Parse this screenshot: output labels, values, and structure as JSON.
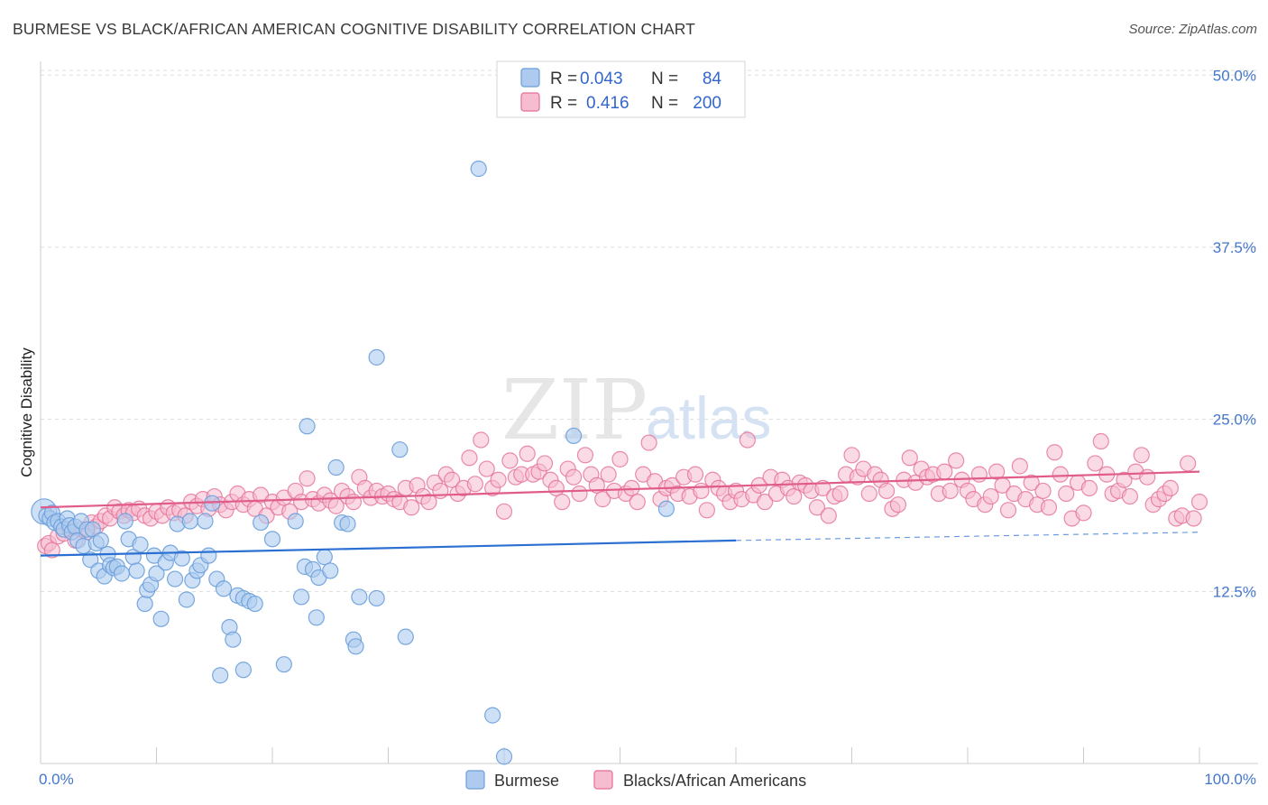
{
  "header": {
    "title": "BURMESE VS BLACK/AFRICAN AMERICAN COGNITIVE DISABILITY CORRELATION CHART",
    "source": "Source: ZipAtlas.com"
  },
  "watermark": {
    "zip": "ZIP",
    "atlas": "atlas"
  },
  "colors": {
    "blue": "#6a9fdc",
    "blue_fill": "#aecbef",
    "blue_line": "#2a6fd1",
    "pink": "#e56f97",
    "pink_fill": "#f6bccf",
    "pink_line": "#e05c8a",
    "tick_text": "#4477cc",
    "grid": "#dddddd"
  },
  "legend": {
    "rows": [
      {
        "r_label": "R =",
        "r_value": "0.043",
        "n_label": "N =",
        "n_value": "84"
      },
      {
        "r_label": "R =",
        "r_value": "0.416",
        "n_label": "N =",
        "n_value": "200"
      }
    ]
  },
  "bottom_legend": {
    "blue_label": "Burmese",
    "pink_label": "Blacks/African Americans"
  },
  "chart_data": {
    "type": "scatter",
    "title": "BURMESE VS BLACK/AFRICAN AMERICAN COGNITIVE DISABILITY CORRELATION CHART",
    "ylabel": "Cognitive Disability",
    "xlabel": "",
    "xlim": [
      0,
      100
    ],
    "ylim": [
      0,
      51
    ],
    "x_tick_labels": [
      "0.0%",
      "100.0%"
    ],
    "y_ticks": [
      12.5,
      25.0,
      37.5,
      50.0
    ],
    "y_tick_labels": [
      "12.5%",
      "25.0%",
      "37.5%",
      "50.0%"
    ],
    "grid": true,
    "legend_position": "top-center",
    "series": [
      {
        "name": "Burmese",
        "R": 0.043,
        "N": 84,
        "trend": {
          "x": [
            0,
            60
          ],
          "y": [
            15.1,
            16.2
          ],
          "dashed_to": [
            100,
            16.8
          ]
        },
        "points": [
          [
            0.3,
            18.3
          ],
          [
            0.5,
            18.0
          ],
          [
            0.8,
            17.8
          ],
          [
            1.0,
            18.2
          ],
          [
            1.2,
            17.5
          ],
          [
            1.5,
            17.6
          ],
          [
            1.8,
            17.2
          ],
          [
            2.0,
            17.0
          ],
          [
            2.3,
            17.8
          ],
          [
            2.5,
            17.3
          ],
          [
            2.7,
            16.8
          ],
          [
            3.0,
            17.2
          ],
          [
            3.2,
            16.2
          ],
          [
            3.5,
            17.6
          ],
          [
            3.7,
            15.8
          ],
          [
            4.0,
            17.0
          ],
          [
            4.3,
            14.8
          ],
          [
            4.5,
            17.0
          ],
          [
            4.8,
            16.0
          ],
          [
            5.0,
            14.0
          ],
          [
            5.2,
            16.2
          ],
          [
            5.5,
            13.6
          ],
          [
            5.8,
            15.2
          ],
          [
            6.0,
            14.4
          ],
          [
            6.3,
            14.2
          ],
          [
            6.6,
            14.3
          ],
          [
            7.0,
            13.8
          ],
          [
            7.3,
            17.6
          ],
          [
            7.6,
            16.3
          ],
          [
            8.0,
            15.0
          ],
          [
            8.3,
            14.0
          ],
          [
            8.6,
            15.9
          ],
          [
            9.0,
            11.6
          ],
          [
            9.2,
            12.6
          ],
          [
            9.5,
            13.0
          ],
          [
            9.8,
            15.1
          ],
          [
            10.0,
            13.8
          ],
          [
            10.4,
            10.5
          ],
          [
            10.8,
            14.6
          ],
          [
            11.2,
            15.3
          ],
          [
            11.6,
            13.4
          ],
          [
            11.8,
            17.4
          ],
          [
            12.2,
            14.9
          ],
          [
            12.6,
            11.9
          ],
          [
            12.9,
            17.6
          ],
          [
            13.1,
            13.3
          ],
          [
            13.5,
            14.0
          ],
          [
            13.8,
            14.4
          ],
          [
            14.2,
            17.6
          ],
          [
            14.5,
            15.1
          ],
          [
            14.8,
            18.9
          ],
          [
            15.2,
            13.4
          ],
          [
            15.5,
            6.4
          ],
          [
            15.8,
            12.7
          ],
          [
            16.3,
            9.9
          ],
          [
            16.6,
            9.0
          ],
          [
            17.0,
            12.2
          ],
          [
            17.5,
            12.0
          ],
          [
            17.5,
            6.8
          ],
          [
            18.0,
            11.8
          ],
          [
            18.5,
            11.6
          ],
          [
            19.0,
            17.5
          ],
          [
            20.0,
            16.3
          ],
          [
            21.0,
            7.2
          ],
          [
            22.0,
            17.6
          ],
          [
            22.5,
            12.1
          ],
          [
            22.8,
            14.3
          ],
          [
            23.0,
            24.5
          ],
          [
            23.5,
            14.1
          ],
          [
            23.8,
            10.6
          ],
          [
            24.0,
            13.5
          ],
          [
            24.5,
            15.0
          ],
          [
            25.0,
            14.0
          ],
          [
            25.5,
            21.5
          ],
          [
            26.0,
            17.5
          ],
          [
            26.5,
            17.4
          ],
          [
            27.0,
            9.0
          ],
          [
            27.2,
            8.5
          ],
          [
            27.5,
            12.1
          ],
          [
            29.0,
            12.0
          ],
          [
            29.0,
            29.5
          ],
          [
            31.0,
            22.8
          ],
          [
            31.5,
            9.2
          ],
          [
            37.8,
            43.2
          ],
          [
            39.0,
            3.5
          ],
          [
            40.0,
            0.5
          ],
          [
            46.0,
            23.8
          ],
          [
            54.0,
            18.5
          ]
        ]
      },
      {
        "name": "Blacks/African Americans",
        "R": 0.416,
        "N": 200,
        "trend": {
          "x": [
            0,
            100
          ],
          "y": [
            18.6,
            21.2
          ]
        },
        "points": [
          [
            0.4,
            15.8
          ],
          [
            0.7,
            16.0
          ],
          [
            1.0,
            15.5
          ],
          [
            1.5,
            16.5
          ],
          [
            2.0,
            16.7
          ],
          [
            2.5,
            17.0
          ],
          [
            3.0,
            16.2
          ],
          [
            3.5,
            17.0
          ],
          [
            4.0,
            16.8
          ],
          [
            4.4,
            17.5
          ],
          [
            4.8,
            17.2
          ],
          [
            5.2,
            17.6
          ],
          [
            5.6,
            18.0
          ],
          [
            6.0,
            17.8
          ],
          [
            6.4,
            18.6
          ],
          [
            6.8,
            18.3
          ],
          [
            7.2,
            18.0
          ],
          [
            7.6,
            18.4
          ],
          [
            8.0,
            18.2
          ],
          [
            8.5,
            18.5
          ],
          [
            9.0,
            18.0
          ],
          [
            9.5,
            17.8
          ],
          [
            10.0,
            18.3
          ],
          [
            10.5,
            18.0
          ],
          [
            11.0,
            18.6
          ],
          [
            11.5,
            18.2
          ],
          [
            12.0,
            18.4
          ],
          [
            12.5,
            18.0
          ],
          [
            13.0,
            19.0
          ],
          [
            13.5,
            18.7
          ],
          [
            14.0,
            19.2
          ],
          [
            14.5,
            18.5
          ],
          [
            15.0,
            19.4
          ],
          [
            15.5,
            18.8
          ],
          [
            16.0,
            18.4
          ],
          [
            16.5,
            19.0
          ],
          [
            17.0,
            19.6
          ],
          [
            17.5,
            18.8
          ],
          [
            18.0,
            19.2
          ],
          [
            18.5,
            18.5
          ],
          [
            19.0,
            19.5
          ],
          [
            19.5,
            18.0
          ],
          [
            20.0,
            19.0
          ],
          [
            20.5,
            18.6
          ],
          [
            21.0,
            19.3
          ],
          [
            21.5,
            18.3
          ],
          [
            22.0,
            19.8
          ],
          [
            22.5,
            19.0
          ],
          [
            23.0,
            20.7
          ],
          [
            23.5,
            19.2
          ],
          [
            24.0,
            18.9
          ],
          [
            24.5,
            19.5
          ],
          [
            25.0,
            19.1
          ],
          [
            25.5,
            18.7
          ],
          [
            26.0,
            19.8
          ],
          [
            26.5,
            19.4
          ],
          [
            27.0,
            19.0
          ],
          [
            27.5,
            20.8
          ],
          [
            28.0,
            20.0
          ],
          [
            28.5,
            19.3
          ],
          [
            29.0,
            19.8
          ],
          [
            29.5,
            19.4
          ],
          [
            30.0,
            19.6
          ],
          [
            30.5,
            19.2
          ],
          [
            31.0,
            19.0
          ],
          [
            31.5,
            20.0
          ],
          [
            32.0,
            18.6
          ],
          [
            32.5,
            20.2
          ],
          [
            33.0,
            19.4
          ],
          [
            33.5,
            19.0
          ],
          [
            34.0,
            20.4
          ],
          [
            34.5,
            19.8
          ],
          [
            35.0,
            21.0
          ],
          [
            35.5,
            20.6
          ],
          [
            36.0,
            19.6
          ],
          [
            36.5,
            20.0
          ],
          [
            37.0,
            22.2
          ],
          [
            37.5,
            20.3
          ],
          [
            38.0,
            23.5
          ],
          [
            38.5,
            21.4
          ],
          [
            39.0,
            20.0
          ],
          [
            39.5,
            20.6
          ],
          [
            40.0,
            18.3
          ],
          [
            40.5,
            22.0
          ],
          [
            41.0,
            20.8
          ],
          [
            41.5,
            21.0
          ],
          [
            42.0,
            22.5
          ],
          [
            42.5,
            21.0
          ],
          [
            43.0,
            21.2
          ],
          [
            43.5,
            21.8
          ],
          [
            44.0,
            20.6
          ],
          [
            44.5,
            20.0
          ],
          [
            45.0,
            19.0
          ],
          [
            45.5,
            21.4
          ],
          [
            46.0,
            20.8
          ],
          [
            46.5,
            19.6
          ],
          [
            47.0,
            22.4
          ],
          [
            47.5,
            21.0
          ],
          [
            48.0,
            20.2
          ],
          [
            48.5,
            19.2
          ],
          [
            49.0,
            21.0
          ],
          [
            49.5,
            19.8
          ],
          [
            50.0,
            22.1
          ],
          [
            50.5,
            19.6
          ],
          [
            51.0,
            20.0
          ],
          [
            51.5,
            19.0
          ],
          [
            52.0,
            21.0
          ],
          [
            52.5,
            23.3
          ],
          [
            53.0,
            20.5
          ],
          [
            53.5,
            19.2
          ],
          [
            54.0,
            20.0
          ],
          [
            54.5,
            20.2
          ],
          [
            55.0,
            19.6
          ],
          [
            55.5,
            20.8
          ],
          [
            56.0,
            19.4
          ],
          [
            56.5,
            21.0
          ],
          [
            57.0,
            19.8
          ],
          [
            57.5,
            18.4
          ],
          [
            58.0,
            20.6
          ],
          [
            58.5,
            20.0
          ],
          [
            59.0,
            19.6
          ],
          [
            59.5,
            19.0
          ],
          [
            60.0,
            19.8
          ],
          [
            60.5,
            19.2
          ],
          [
            61.0,
            23.5
          ],
          [
            61.5,
            19.5
          ],
          [
            62.0,
            20.2
          ],
          [
            62.5,
            19.0
          ],
          [
            63.0,
            20.8
          ],
          [
            63.5,
            19.6
          ],
          [
            64.0,
            20.6
          ],
          [
            64.5,
            20.0
          ],
          [
            65.0,
            19.4
          ],
          [
            65.5,
            20.4
          ],
          [
            66.0,
            20.2
          ],
          [
            66.5,
            19.8
          ],
          [
            67.0,
            18.6
          ],
          [
            67.5,
            20.0
          ],
          [
            68.0,
            18.0
          ],
          [
            68.5,
            19.4
          ],
          [
            69.0,
            19.6
          ],
          [
            69.5,
            21.0
          ],
          [
            70.0,
            22.4
          ],
          [
            70.5,
            20.8
          ],
          [
            71.0,
            21.4
          ],
          [
            71.5,
            19.6
          ],
          [
            72.0,
            21.0
          ],
          [
            72.5,
            20.6
          ],
          [
            73.0,
            19.8
          ],
          [
            73.5,
            18.5
          ],
          [
            74.0,
            18.8
          ],
          [
            74.5,
            20.6
          ],
          [
            75.0,
            22.2
          ],
          [
            75.5,
            20.4
          ],
          [
            76.0,
            21.4
          ],
          [
            76.5,
            20.8
          ],
          [
            77.0,
            21.0
          ],
          [
            77.5,
            19.6
          ],
          [
            78.0,
            21.2
          ],
          [
            78.5,
            19.8
          ],
          [
            79.0,
            22.0
          ],
          [
            79.5,
            20.6
          ],
          [
            80.0,
            19.8
          ],
          [
            80.5,
            19.2
          ],
          [
            81.0,
            21.0
          ],
          [
            81.5,
            18.8
          ],
          [
            82.0,
            19.4
          ],
          [
            82.5,
            21.2
          ],
          [
            83.0,
            20.2
          ],
          [
            83.5,
            18.4
          ],
          [
            84.0,
            19.6
          ],
          [
            84.5,
            21.6
          ],
          [
            85.0,
            19.2
          ],
          [
            85.5,
            20.4
          ],
          [
            86.0,
            18.8
          ],
          [
            86.5,
            19.8
          ],
          [
            87.0,
            18.6
          ],
          [
            87.5,
            22.6
          ],
          [
            88.0,
            21.0
          ],
          [
            88.5,
            19.6
          ],
          [
            89.0,
            17.8
          ],
          [
            89.5,
            20.4
          ],
          [
            90.0,
            18.2
          ],
          [
            90.5,
            20.0
          ],
          [
            91.0,
            21.8
          ],
          [
            91.5,
            23.4
          ],
          [
            92.0,
            21.0
          ],
          [
            92.5,
            19.6
          ],
          [
            93.0,
            19.8
          ],
          [
            93.5,
            20.6
          ],
          [
            94.0,
            19.4
          ],
          [
            94.5,
            21.2
          ],
          [
            95.0,
            22.4
          ],
          [
            95.5,
            20.8
          ],
          [
            96.0,
            18.8
          ],
          [
            96.5,
            19.2
          ],
          [
            97.0,
            19.6
          ],
          [
            97.5,
            20.0
          ],
          [
            98.0,
            17.8
          ],
          [
            98.5,
            18.0
          ],
          [
            99.0,
            21.8
          ],
          [
            99.5,
            17.8
          ],
          [
            100.0,
            19.0
          ]
        ]
      }
    ]
  }
}
